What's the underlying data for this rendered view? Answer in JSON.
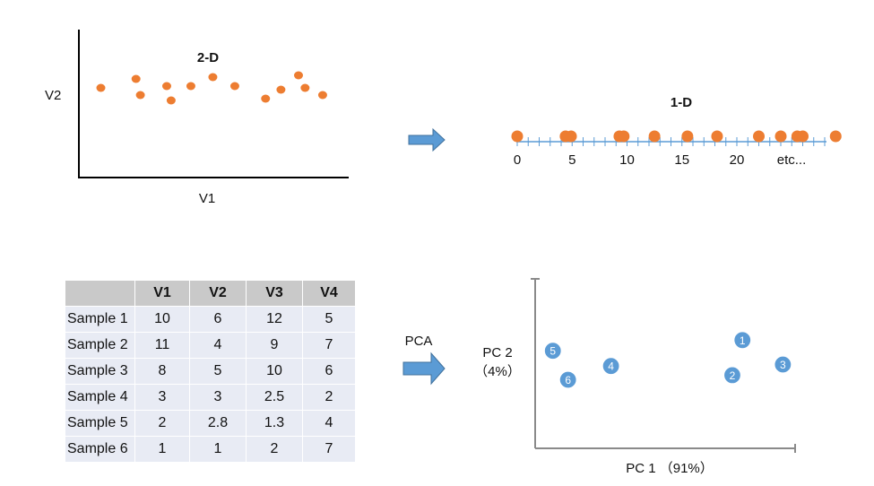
{
  "scatter2d": {
    "title": "2-D",
    "xlabel": "V1",
    "ylabel": "V2",
    "point_color": "#ED7D31",
    "points": [
      {
        "x": 1.0,
        "y": 5.0
      },
      {
        "x": 2.6,
        "y": 5.5
      },
      {
        "x": 2.8,
        "y": 4.6
      },
      {
        "x": 4.0,
        "y": 5.1
      },
      {
        "x": 4.2,
        "y": 4.3
      },
      {
        "x": 5.1,
        "y": 5.1
      },
      {
        "x": 6.1,
        "y": 5.6
      },
      {
        "x": 7.1,
        "y": 5.1
      },
      {
        "x": 8.5,
        "y": 4.4
      },
      {
        "x": 9.2,
        "y": 4.9
      },
      {
        "x": 10.0,
        "y": 5.7
      },
      {
        "x": 10.3,
        "y": 5.0
      },
      {
        "x": 11.1,
        "y": 4.6
      }
    ]
  },
  "arrow_top": {
    "color": "#5B9BD5"
  },
  "numberline": {
    "title": "1-D",
    "axis_color": "#5B9BD5",
    "point_color": "#ED7D31",
    "ticks": [
      "0",
      "5",
      "10",
      "15",
      "20"
    ],
    "tick_values": [
      0,
      5,
      10,
      15,
      20
    ],
    "etc_label": "etc...",
    "points": [
      0,
      4.4,
      4.9,
      9.3,
      9.7,
      12.5,
      15.5,
      18.2,
      22.0,
      24.0,
      25.5,
      26.0,
      29.0
    ]
  },
  "table": {
    "headers": [
      "",
      "V1",
      "V2",
      "V3",
      "V4"
    ],
    "rows": [
      [
        "Sample 1",
        "10",
        "6",
        "12",
        "5"
      ],
      [
        "Sample 2",
        "11",
        "4",
        "9",
        "7"
      ],
      [
        "Sample 3",
        "8",
        "5",
        "10",
        "6"
      ],
      [
        "Sample 4",
        "3",
        "3",
        "2.5",
        "2"
      ],
      [
        "Sample 5",
        "2",
        "2.8",
        "1.3",
        "4"
      ],
      [
        "Sample 6",
        "1",
        "1",
        "2",
        "7"
      ]
    ]
  },
  "pca_arrow": {
    "label": "PCA",
    "color": "#5B9BD5"
  },
  "pca_plot": {
    "xlabel": "PC 1 （91%）",
    "ylabel_line1": "PC 2",
    "ylabel_line2": "（4%）",
    "point_color": "#5B9BD5",
    "points": [
      {
        "label": "1",
        "pc1": 0.82,
        "pc2": 0.71
      },
      {
        "label": "2",
        "pc1": 0.78,
        "pc2": 0.48
      },
      {
        "label": "3",
        "pc1": 0.98,
        "pc2": 0.55
      },
      {
        "label": "4",
        "pc1": 0.3,
        "pc2": 0.54
      },
      {
        "label": "5",
        "pc1": 0.07,
        "pc2": 0.64
      },
      {
        "label": "6",
        "pc1": 0.13,
        "pc2": 0.45
      }
    ]
  }
}
